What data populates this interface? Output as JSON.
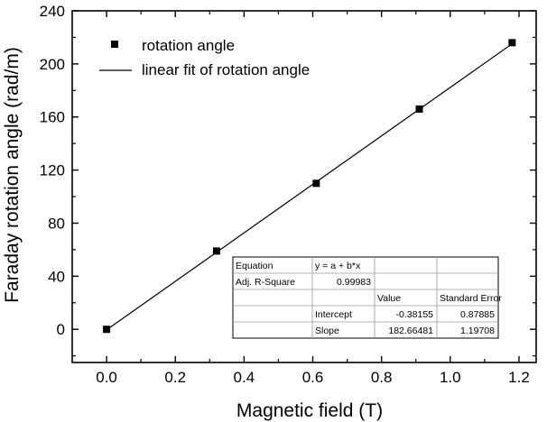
{
  "chart_data": {
    "type": "scatter",
    "title": "",
    "xlabel": "Magnetic field (T)",
    "ylabel": "Faraday rotation angle (rad/m)",
    "xlim": [
      -0.1,
      1.25
    ],
    "ylim": [
      -25,
      240
    ],
    "x_ticks": [
      0.0,
      0.2,
      0.4,
      0.6,
      0.8,
      1.0,
      1.2
    ],
    "x_tick_labels": [
      "0.0",
      "0.2",
      "0.4",
      "0.6",
      "0.8",
      "1.0",
      "1.2"
    ],
    "y_ticks": [
      0,
      40,
      80,
      120,
      160,
      200,
      240
    ],
    "y_tick_labels": [
      "0",
      "40",
      "80",
      "120",
      "160",
      "200",
      "240"
    ],
    "grid": false,
    "legend_position": "top-left",
    "series": [
      {
        "name": "rotation angle",
        "type": "scatter",
        "marker": "square",
        "color": "#000000",
        "x": [
          0.0,
          0.32,
          0.61,
          0.91,
          1.18
        ],
        "y": [
          0.0,
          59.0,
          110.0,
          166.0,
          216.0
        ]
      },
      {
        "name": "linear fit of rotation angle",
        "type": "line",
        "color": "#000000",
        "intercept": -0.38155,
        "slope": 182.66481,
        "x_range": [
          0.0,
          1.18
        ]
      }
    ],
    "fit_table": {
      "rows": [
        [
          "Equation",
          "y = a + b*x",
          "",
          ""
        ],
        [
          "Adj. R-Square",
          "0.99983",
          "",
          ""
        ],
        [
          "",
          "",
          "Value",
          "Standard Error"
        ],
        [
          "",
          "Intercept",
          "-0.38155",
          "0.87885"
        ],
        [
          "",
          "Slope",
          "182.66481",
          "1.19708"
        ]
      ]
    }
  }
}
